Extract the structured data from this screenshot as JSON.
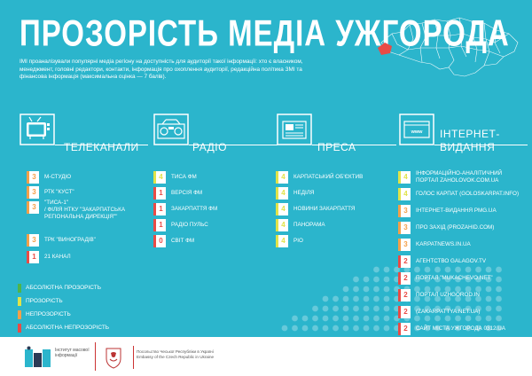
{
  "title": "ПРОЗОРІСТЬ МЕДІА УЖГОРОДА",
  "intro": "ІМІ проаналізували популярні медіа регіону на доступність для аудиторії такої інформації: хто є власником, менеджмент, головні редактори, контакти, інформація про охоплення аудиторії, редакційна політика ЗМІ та фінансова інформація (максимальна оцінка — 7 балів).",
  "colors": {
    "background": "#2bb5cc",
    "green": "#4fb44a",
    "yellow": "#e0e349",
    "orange": "#f3a04a",
    "red": "#e94b46"
  },
  "categories": [
    {
      "label": "ТЕЛЕКАНАЛИ",
      "icon": "tv-icon",
      "items": [
        {
          "score": "3",
          "level": "orange",
          "name": "М-СТУДІО"
        },
        {
          "score": "3",
          "level": "orange",
          "name": "РТК \"КУСТ\""
        },
        {
          "score": "3",
          "level": "orange",
          "name": "\"ТИСА-1\"",
          "name2": "/ ФІЛІЯ НТКУ \"ЗАКАРПАТСЬКА",
          "name3": "РЕГІОНАЛЬНА ДИРЕКЦІЯ\"\""
        },
        {
          "score": "3",
          "level": "orange",
          "name": "ТРК \"ВИНОГРАДІВ\""
        },
        {
          "score": "1",
          "level": "red",
          "name": "21 КАНАЛ"
        }
      ]
    },
    {
      "label": "РАДІО",
      "icon": "radio-icon",
      "items": [
        {
          "score": "4",
          "level": "yellow",
          "name": "ТИСА ФМ"
        },
        {
          "score": "1",
          "level": "red",
          "name": "ВЕРСІЯ ФМ"
        },
        {
          "score": "1",
          "level": "red",
          "name": "ЗАКАРПАТТЯ ФМ"
        },
        {
          "score": "1",
          "level": "red",
          "name": "РАДІО ПУЛЬС"
        },
        {
          "score": "0",
          "level": "red",
          "name": "СВІТ ФМ"
        }
      ]
    },
    {
      "label": "ПРЕСА",
      "icon": "press-icon",
      "items": [
        {
          "score": "4",
          "level": "yellow",
          "name": "КАРПАТСЬКИЙ ОБ'ЄКТИВ"
        },
        {
          "score": "4",
          "level": "yellow",
          "name": "НЕДІЛЯ"
        },
        {
          "score": "4",
          "level": "yellow",
          "name": "НОВИНИ ЗАКАРПАТТЯ"
        },
        {
          "score": "4",
          "level": "yellow",
          "name": "ПАНОРАМА"
        },
        {
          "score": "4",
          "level": "yellow",
          "name": "РІО"
        }
      ]
    },
    {
      "label": "ІНТЕРНЕТ-",
      "label2": "ВИДАННЯ",
      "icon": "web-icon",
      "items": [
        {
          "score": "4",
          "level": "yellow",
          "name": "ІНФОРМАЦІЙНО-АНАЛІТИЧНИЙ",
          "name2": "ПОРТАЛ ZAHOLOVOK.COM.UA"
        },
        {
          "score": "4",
          "level": "yellow",
          "name": "ГОЛОС КАРПАТ (GOLOSKARPAT.INFO)"
        },
        {
          "score": "3",
          "level": "orange",
          "name": "ІНТЕРНЕТ-ВИДАННЯ PMG.UA"
        },
        {
          "score": "3",
          "level": "orange",
          "name": "ПРО ЗАХІД (PROZAHID.COM)"
        },
        {
          "score": "3",
          "level": "orange",
          "name": "KARPATNEWS.IN.UA"
        },
        {
          "score": "2",
          "level": "red",
          "name": "АГЕНТСТВО GALAGOV.TV"
        },
        {
          "score": "2",
          "level": "red",
          "name": "ПОРТАЛ \"MUKACHEVO.NET\""
        },
        {
          "score": "2",
          "level": "red",
          "name": "ПОРТАЛ UZHGOROD.IN"
        },
        {
          "score": "2",
          "level": "red",
          "name": "(ZAKARPATTYA.NET.UA)"
        },
        {
          "score": "2",
          "level": "red",
          "name": "САЙТ МІСТА УЖГОРОДА 0312.UA"
        }
      ]
    }
  ],
  "legend": [
    {
      "color": "green",
      "label": "АБСОЛЮТНА ПРОЗОРІСТЬ"
    },
    {
      "color": "yellow",
      "label": "ПРОЗОРІСТЬ"
    },
    {
      "color": "orange",
      "label": "НЕПРОЗОРІСТЬ"
    },
    {
      "color": "red",
      "label": "АБСОЛЮТНА НЕПРОЗОРІСТЬ"
    }
  ],
  "footer": {
    "imi_line1": "Інститут масової",
    "imi_line2": "інформації",
    "embassy_line1": "Посольство Чеської Республіки в Україні",
    "embassy_line2": "Embassy of the Czech Republic in Ukraine"
  }
}
